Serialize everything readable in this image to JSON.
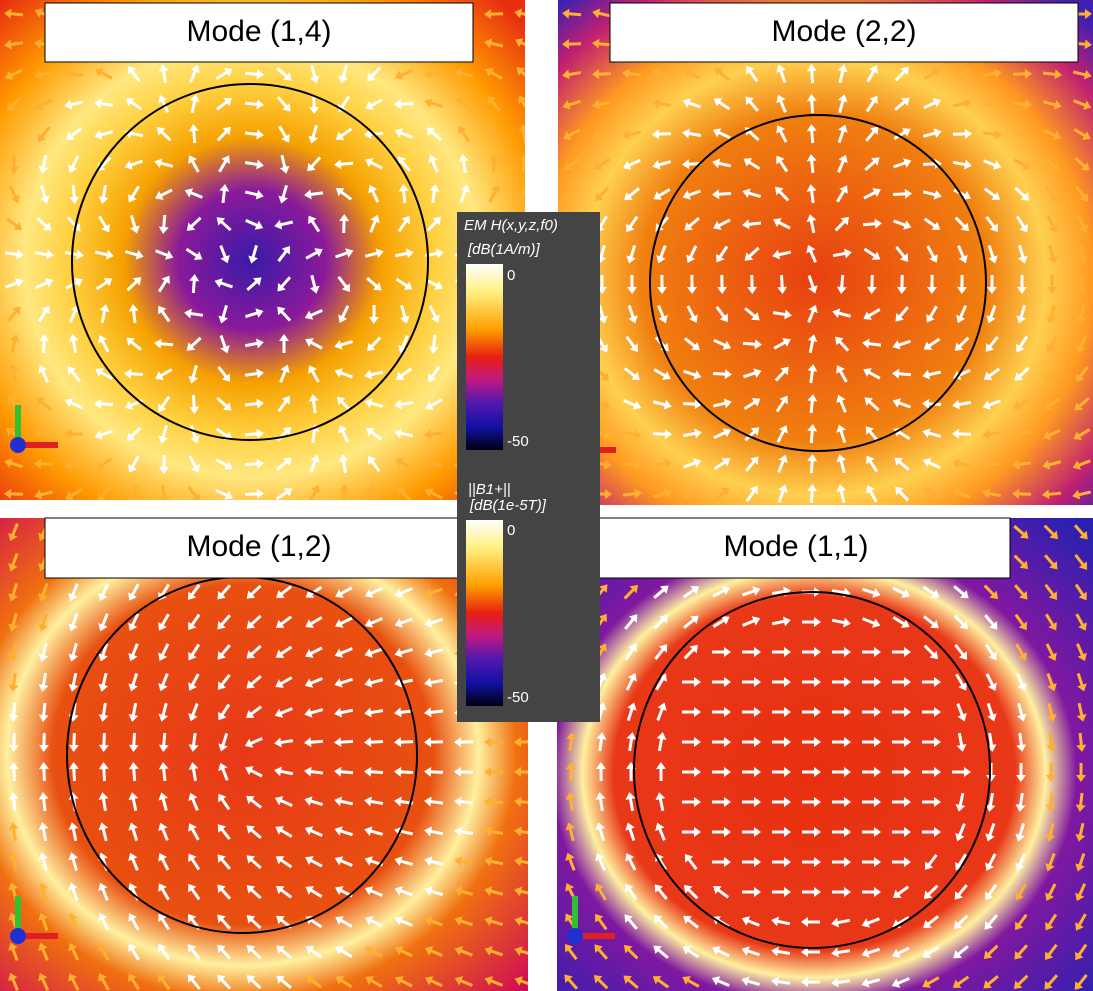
{
  "panels": [
    {
      "title": "Mode (1,4)"
    },
    {
      "title": "Mode (2,2)"
    },
    {
      "title": "Mode (1,2)"
    },
    {
      "title": "Mode (1,1)"
    }
  ],
  "colorbars": [
    {
      "title": "EM H(x,y,z,f0)",
      "unit": "[dB(1A/m)]",
      "max": 0,
      "min": -50
    },
    {
      "title": "||B1+||",
      "unit": "[dB(1e-5T)]",
      "max": 0,
      "min": -50
    }
  ]
}
